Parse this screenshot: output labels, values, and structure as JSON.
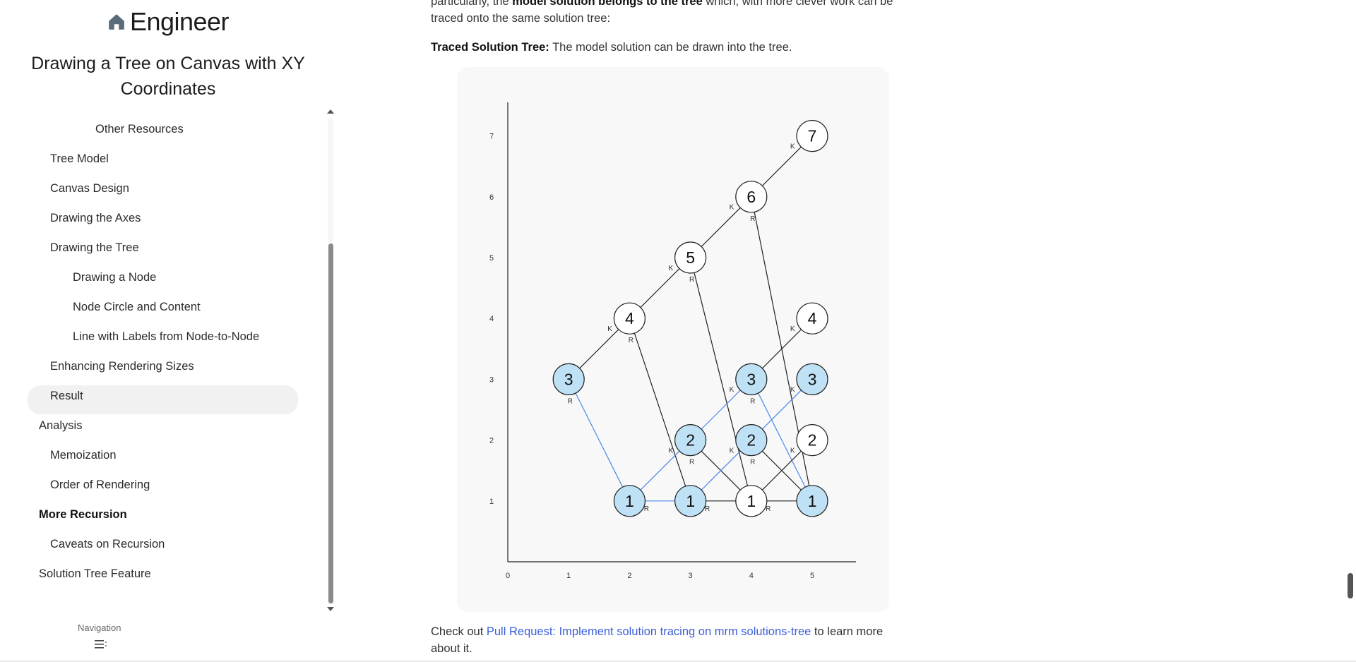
{
  "sidebar": {
    "brand": "Engineer",
    "doc_title": "Drawing a Tree on Canvas with XY Coordinates",
    "items": [
      {
        "label": "Other Resources",
        "indent": 3
      },
      {
        "label": "Tree Model",
        "indent": 2
      },
      {
        "label": "Canvas Design",
        "indent": 2
      },
      {
        "label": "Drawing the Axes",
        "indent": 2
      },
      {
        "label": "Drawing the Tree",
        "indent": 2
      },
      {
        "label": "Drawing a Node",
        "indent": 3
      },
      {
        "label": "Node Circle and Content",
        "indent": 3
      },
      {
        "label": "Line with Labels from Node-to-Node",
        "indent": 3
      },
      {
        "label": "Enhancing Rendering Sizes",
        "indent": 2
      },
      {
        "label": "Result",
        "indent": 2
      },
      {
        "label": "Analysis",
        "indent": 1
      },
      {
        "label": "Memoization",
        "indent": 2
      },
      {
        "label": "Order of Rendering",
        "indent": 2
      },
      {
        "label": "More Recursion",
        "indent": 1,
        "active": true
      },
      {
        "label": "Caveats on Recursion",
        "indent": 2
      },
      {
        "label": "Solution Tree Feature",
        "indent": 1
      }
    ],
    "navigation_label": "Navigation"
  },
  "main": {
    "p1": {
      "prefix": "particularly, the ",
      "bold": "model solution belongs to the tree",
      "suffix": " which, with more clever work can be traced onto the same solution tree:"
    },
    "p2": {
      "bold": "Traced Solution Tree:",
      "text": " The model solution can be drawn into the tree."
    },
    "p3": {
      "prefix": "Check out ",
      "link": "Pull Request: Implement solution tracing on mrm solutions-tree",
      "suffix": " to learn more about it."
    }
  },
  "chart_data": {
    "type": "diagram-tree",
    "x_ticks": [
      "0",
      "1",
      "2",
      "3",
      "4",
      "5"
    ],
    "y_ticks": [
      "1",
      "2",
      "3",
      "4",
      "5",
      "6",
      "7"
    ],
    "nodes": [
      {
        "id": "n7",
        "x": 5,
        "y": 7,
        "label": "7",
        "highlight": false
      },
      {
        "id": "n6",
        "x": 4,
        "y": 6,
        "label": "6",
        "highlight": false
      },
      {
        "id": "n5",
        "x": 3,
        "y": 5,
        "label": "5",
        "highlight": false
      },
      {
        "id": "n4a",
        "x": 2,
        "y": 4,
        "label": "4",
        "highlight": false
      },
      {
        "id": "n4b",
        "x": 5,
        "y": 4,
        "label": "4",
        "highlight": false
      },
      {
        "id": "n3a",
        "x": 1,
        "y": 3,
        "label": "3",
        "highlight": true
      },
      {
        "id": "n3b",
        "x": 4,
        "y": 3,
        "label": "3",
        "highlight": true
      },
      {
        "id": "n3c",
        "x": 5,
        "y": 3,
        "label": "3",
        "highlight": true
      },
      {
        "id": "n2a",
        "x": 3,
        "y": 2,
        "label": "2",
        "highlight": true
      },
      {
        "id": "n2b",
        "x": 4,
        "y": 2,
        "label": "2",
        "highlight": true
      },
      {
        "id": "n2c",
        "x": 5,
        "y": 2,
        "label": "2",
        "highlight": false
      },
      {
        "id": "n1a",
        "x": 2,
        "y": 1,
        "label": "1",
        "highlight": true
      },
      {
        "id": "n1b",
        "x": 3,
        "y": 1,
        "label": "1",
        "highlight": true
      },
      {
        "id": "n1c",
        "x": 4,
        "y": 1,
        "label": "1",
        "highlight": false
      },
      {
        "id": "n1d",
        "x": 5,
        "y": 1,
        "label": "1",
        "highlight": true
      }
    ],
    "edges": [
      {
        "from": "n7",
        "to": "n6",
        "label": "K",
        "traced": false
      },
      {
        "from": "n6",
        "to": "n5",
        "label": "K",
        "traced": false
      },
      {
        "from": "n6",
        "to": "n1d",
        "label": "R",
        "traced": false
      },
      {
        "from": "n5",
        "to": "n4a",
        "label": "K",
        "traced": false
      },
      {
        "from": "n5",
        "to": "n1c",
        "label": "R",
        "traced": false
      },
      {
        "from": "n4a",
        "to": "n3a",
        "label": "K",
        "traced": false
      },
      {
        "from": "n4a",
        "to": "n1b",
        "label": "R",
        "traced": false
      },
      {
        "from": "n4b",
        "to": "n3b",
        "label": "K",
        "traced": false
      },
      {
        "from": "n3a",
        "to": "n1a",
        "label": "R",
        "traced": true
      },
      {
        "from": "n3b",
        "to": "n2a",
        "label": "K",
        "traced": true
      },
      {
        "from": "n3b",
        "to": "n1d",
        "label": "R",
        "traced": true
      },
      {
        "from": "n3c",
        "to": "n2b",
        "label": "K",
        "traced": true
      },
      {
        "from": "n2a",
        "to": "n1a",
        "label": "K",
        "traced": true
      },
      {
        "from": "n2a",
        "to": "n1c",
        "label": "R",
        "traced": false
      },
      {
        "from": "n2b",
        "to": "n1b",
        "label": "K",
        "traced": true
      },
      {
        "from": "n2b",
        "to": "n1d",
        "label": "R",
        "traced": false
      },
      {
        "from": "n2c",
        "to": "n1c",
        "label": "K",
        "traced": false
      },
      {
        "from": "n1a",
        "to": "n1b",
        "label": "R",
        "traced": true
      },
      {
        "from": "n1b",
        "to": "n1c",
        "label": "R",
        "traced": false
      },
      {
        "from": "n1c",
        "to": "n1d",
        "label": "R",
        "traced": false
      }
    ],
    "colors": {
      "traced_edge": "#4a86e8",
      "edge": "#222222",
      "highlight_fill": "#bfe1f6",
      "node_fill": "#ffffff"
    }
  }
}
